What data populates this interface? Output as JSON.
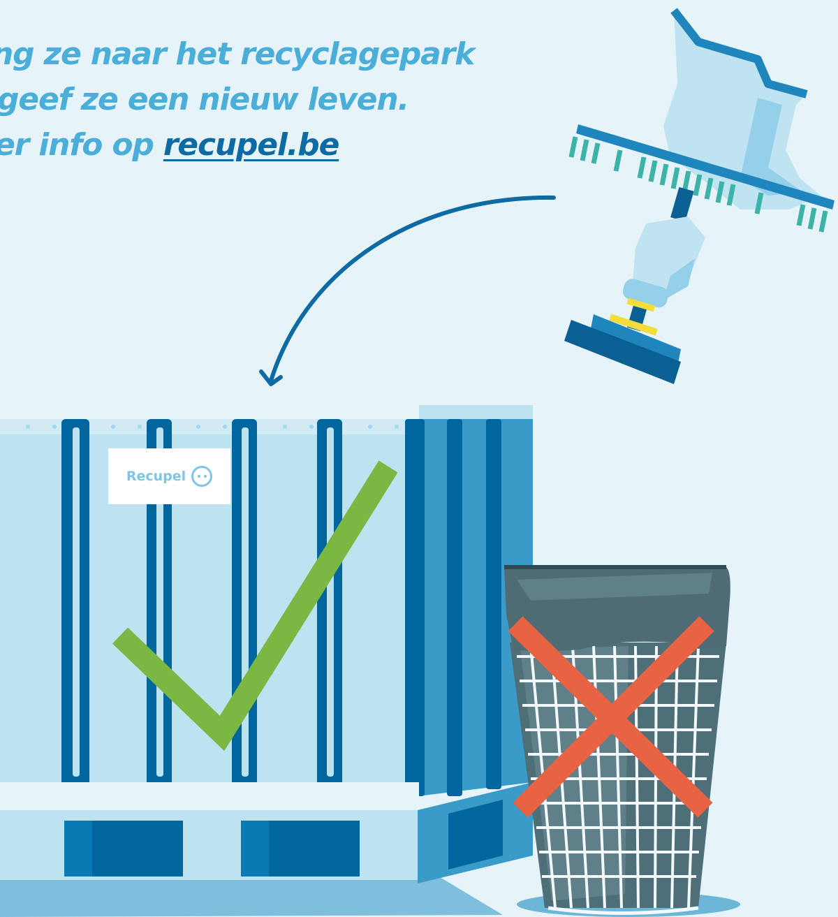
{
  "headline": {
    "line1": "ng ze naar het recyclagepark",
    "line2": "geef ze een nieuw leven.",
    "line3_prefix": "er info op ",
    "line3_link": "recupel.be"
  },
  "container": {
    "brand_label": "Recupel",
    "brand_icon": "smiley-face-icon"
  },
  "colors": {
    "background": "#e6f3f9",
    "text": "#4aaed8",
    "link": "#0d6aa3",
    "check": "#7ab843",
    "cross": "#e86244",
    "container_dark": "#01669e",
    "container_light": "#bde3f0"
  },
  "icons": [
    "curved-arrow-icon",
    "pool-vacuum-icon",
    "checkmark-icon",
    "cross-icon",
    "trash-bin-icon"
  ]
}
